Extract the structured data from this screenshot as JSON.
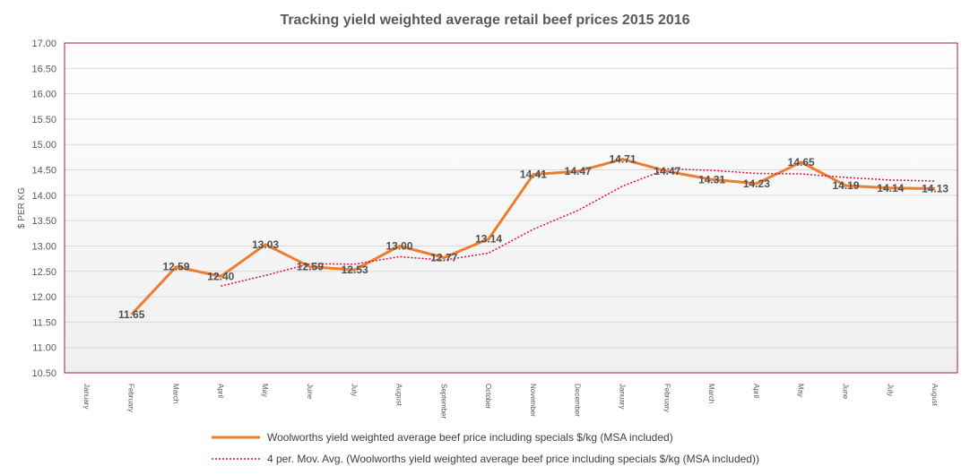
{
  "chart_data": {
    "type": "line",
    "title": "Tracking yield weighted average retail beef prices 2015 2016",
    "ylabel": "$ PER KG",
    "xlabel": "",
    "ylim": [
      10.5,
      17.0
    ],
    "ytick_step": 0.5,
    "grid": true,
    "legend_position": "bottom",
    "categories": [
      "January",
      "February",
      "March",
      "April",
      "May",
      "June",
      "July",
      "August",
      "September",
      "October",
      "November",
      "December",
      "January",
      "February",
      "March",
      "April",
      "May",
      "June",
      "July",
      "August"
    ],
    "series": [
      {
        "name": "Woolworths yield weighted average beef price including specials $/kg (MSA included)",
        "style": "solid",
        "color": "#ed7d31",
        "data_labels": true,
        "values": [
          null,
          11.65,
          12.59,
          12.4,
          13.03,
          12.59,
          12.53,
          13.0,
          12.77,
          13.14,
          14.41,
          14.47,
          14.71,
          14.47,
          14.31,
          14.23,
          14.65,
          14.19,
          14.14,
          14.13
        ]
      },
      {
        "name": "4 per. Mov. Avg. (Woolworths yield weighted average beef price including specials $/kg (MSA included))",
        "style": "dotted",
        "color": "#e0103a",
        "data_labels": false,
        "values": [
          null,
          null,
          null,
          12.21,
          12.42,
          12.65,
          12.64,
          12.79,
          12.72,
          12.86,
          13.33,
          13.7,
          14.18,
          14.52,
          14.49,
          14.43,
          14.42,
          14.35,
          14.3,
          14.28
        ]
      }
    ]
  },
  "colors": {
    "plot_border": "#a0202a",
    "grid": "#d9d9d9",
    "text": "#595959"
  }
}
